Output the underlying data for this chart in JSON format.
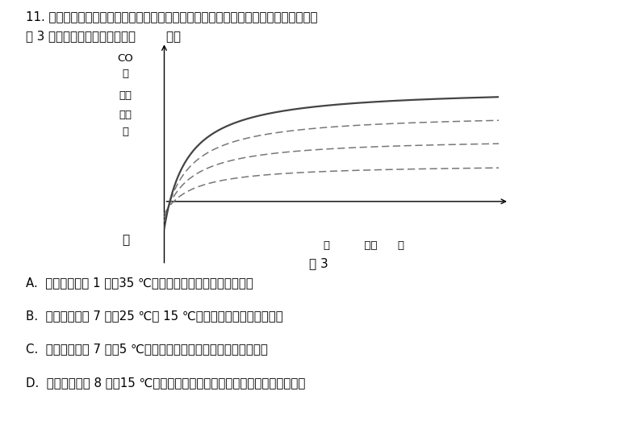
{
  "title_line1": "11. 某研究者研究不同的光照强度、温度对植物光合作用和呼吸作用的影响，实验结果如",
  "title_line2": "图 3 所示。下列分析正确的是（        ）。",
  "fig_label": "图 3",
  "ylabel_line1": "CO",
  "ylabel_line2": "的",
  "ylabel_line3": "速率",
  "ylabel_line4": "（相",
  "ylabel_line5": "）",
  "xlabel_text": "照          （相      ）",
  "answer_A": "A.  光照强度等于 1 时，35 ℃条件下总光合速率等于呼吸速率",
  "answer_B": "B.  光照强度大于 7 时，25 ℃和 15 ℃条件下植物总光合速率相同",
  "answer_C": "C.  光照强度大于 7 时，5 ℃条件下与光合作用有关的酶的活性最高",
  "answer_D": "D.  光照强度等于 8 时，15 ℃条件下植物释放氧气的速率比其他实验组的更大",
  "background_color": "#ffffff",
  "text_color": "#000000",
  "curve_color_solid": "#444444",
  "curve_color_dashed": "#777777"
}
